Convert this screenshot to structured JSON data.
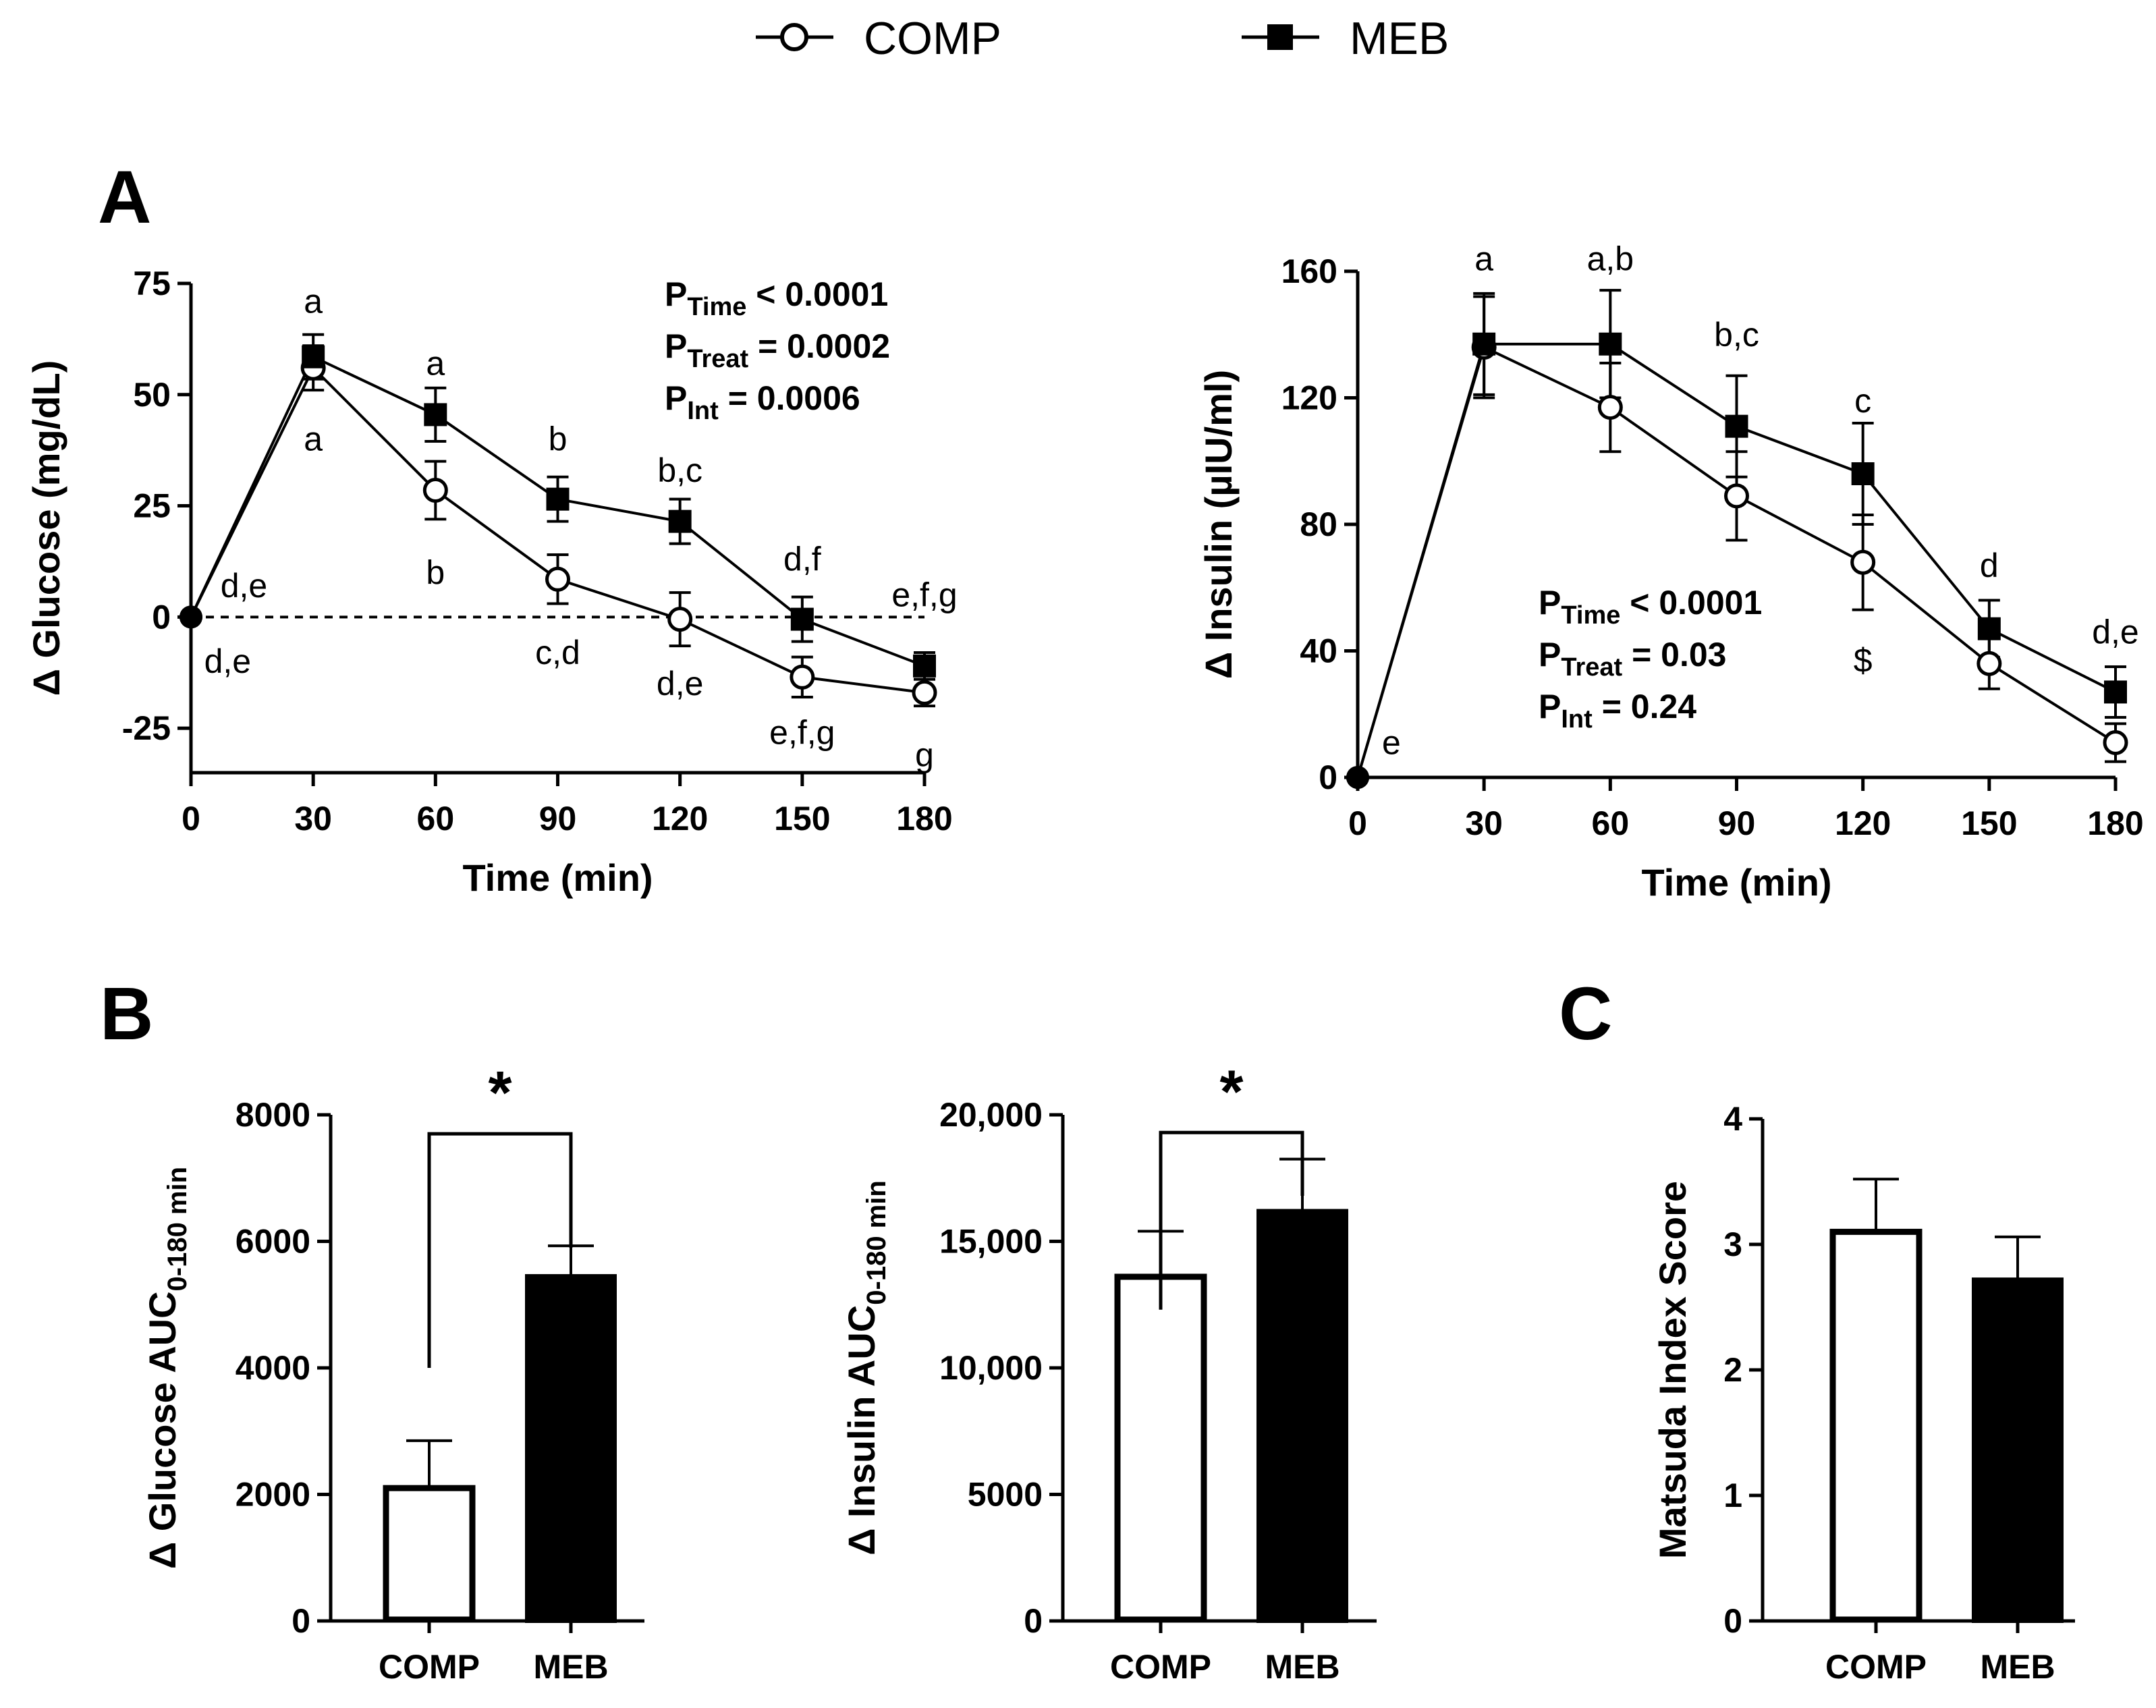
{
  "legend": {
    "items": [
      {
        "name": "COMP",
        "marker": "open-circle"
      },
      {
        "name": "MEB",
        "marker": "filled-square"
      }
    ]
  },
  "colors": {
    "ink": "#000000",
    "background": "#ffffff"
  },
  "chart_data": [
    {
      "id": "glucose_time",
      "panel": "A",
      "type": "line",
      "xlabel": "Time (min)",
      "ylabel": "Δ Glucose (mg/dL)",
      "x": [
        0,
        30,
        60,
        90,
        120,
        150,
        180
      ],
      "xlim": [
        0,
        180
      ],
      "ylim": [
        -35,
        75
      ],
      "yticks": [
        -25,
        0,
        25,
        50,
        75
      ],
      "ytick_labels": [
        "-25",
        "0",
        "25",
        "50",
        "75"
      ],
      "xticks": [
        0,
        30,
        60,
        90,
        120,
        150,
        180
      ],
      "xtick_labels": [
        "0",
        "30",
        "60",
        "90",
        "120",
        "150",
        "180"
      ],
      "zero_line": true,
      "series": [
        {
          "name": "COMP",
          "marker": "open-circle",
          "values": [
            0,
            56,
            28.5,
            8.5,
            -0.5,
            -13.5,
            -17
          ],
          "error": [
            0,
            5,
            6.5,
            5.5,
            6,
            4.5,
            3
          ]
        },
        {
          "name": "MEB",
          "marker": "filled-square",
          "values": [
            0,
            58.5,
            45.5,
            26.5,
            21.5,
            -0.5,
            -11
          ],
          "error": [
            0,
            5,
            6,
            5,
            5,
            5,
            3
          ]
        }
      ],
      "annotations": [
        {
          "text": "a",
          "x": 30,
          "y": 71
        },
        {
          "text": "a",
          "x": 30,
          "y": 40
        },
        {
          "text": "a",
          "x": 60,
          "y": 57
        },
        {
          "text": "b",
          "x": 60,
          "y": 10
        },
        {
          "text": "b",
          "x": 90,
          "y": 40
        },
        {
          "text": "c,d",
          "x": 90,
          "y": -8
        },
        {
          "text": "b,c",
          "x": 120,
          "y": 33
        },
        {
          "text": "d,e",
          "x": 120,
          "y": -15
        },
        {
          "text": "d,f",
          "x": 150,
          "y": 13
        },
        {
          "text": "e,f,g",
          "x": 150,
          "y": -26
        },
        {
          "text": "e,f,g",
          "x": 180,
          "y": 5
        },
        {
          "text": "g",
          "x": 180,
          "y": -31
        },
        {
          "text": "d,e",
          "x": 13,
          "y": 7
        },
        {
          "text": "d,e",
          "x": 9,
          "y": -10
        }
      ],
      "stats": [
        {
          "p": "P",
          "sub": "Time",
          "rest": " < 0.0001"
        },
        {
          "p": "P",
          "sub": "Treat",
          "rest": " = 0.0002"
        },
        {
          "p": "P",
          "sub": "Int",
          "rest": " = 0.0006"
        }
      ]
    },
    {
      "id": "insulin_time",
      "panel": "A",
      "type": "line",
      "xlabel": "Time (min)",
      "ylabel": "Δ Insulin (µIU/ml)",
      "x": [
        0,
        30,
        60,
        90,
        120,
        150,
        180
      ],
      "xlim": [
        0,
        180
      ],
      "ylim": [
        0,
        160
      ],
      "yticks": [
        0,
        40,
        80,
        120,
        160
      ],
      "ytick_labels": [
        "0",
        "40",
        "80",
        "120",
        "160"
      ],
      "xticks": [
        0,
        30,
        60,
        90,
        120,
        150,
        180
      ],
      "xtick_labels": [
        "0",
        "30",
        "60",
        "90",
        "120",
        "150",
        "180"
      ],
      "zero_line": false,
      "series": [
        {
          "name": "COMP",
          "marker": "open-circle",
          "values": [
            0,
            136,
            117,
            89,
            68,
            36,
            11
          ],
          "error": [
            0,
            16,
            14,
            14,
            15,
            8,
            6
          ]
        },
        {
          "name": "MEB",
          "marker": "filled-square",
          "values": [
            0,
            137,
            137,
            111,
            96,
            47,
            27
          ],
          "error": [
            0,
            16,
            17,
            16,
            16,
            9,
            8
          ]
        }
      ],
      "annotations": [
        {
          "text": "a",
          "x": 30,
          "y": 164
        },
        {
          "text": "a,b",
          "x": 60,
          "y": 164
        },
        {
          "text": "b,c",
          "x": 90,
          "y": 140
        },
        {
          "text": "c",
          "x": 120,
          "y": 119
        },
        {
          "text": "$",
          "x": 120,
          "y": 37
        },
        {
          "text": "d",
          "x": 150,
          "y": 67
        },
        {
          "text": "d,e",
          "x": 180,
          "y": 46
        },
        {
          "text": "e",
          "x": 8,
          "y": 11
        }
      ],
      "stats": [
        {
          "p": "P",
          "sub": "Time",
          "rest": " < 0.0001"
        },
        {
          "p": "P",
          "sub": "Treat",
          "rest": " = 0.03"
        },
        {
          "p": "P",
          "sub": "Int",
          "rest": " = 0.24"
        }
      ]
    },
    {
      "id": "glucose_auc",
      "panel": "B",
      "type": "bar",
      "ylabel_main": "Δ Glucose AUC",
      "ylabel_sub": "0-180 min",
      "categories": [
        "COMP",
        "MEB"
      ],
      "values": [
        2100,
        5450
      ],
      "error": [
        750,
        480
      ],
      "ylim": [
        0,
        8000
      ],
      "yticks": [
        0,
        2000,
        4000,
        6000,
        8000
      ],
      "ytick_labels": [
        "0",
        "2000",
        "4000",
        "6000",
        "8000"
      ],
      "significance": "*"
    },
    {
      "id": "insulin_auc",
      "panel": "B",
      "type": "bar",
      "ylabel_main": "Δ Insulin AUC",
      "ylabel_sub": "0-180 min",
      "categories": [
        "COMP",
        "MEB"
      ],
      "values": [
        13600,
        16200
      ],
      "error": [
        1800,
        2050
      ],
      "ylim": [
        0,
        20000
      ],
      "yticks": [
        0,
        5000,
        10000,
        15000,
        20000
      ],
      "ytick_labels": [
        "0",
        "5000",
        "10,000",
        "15,000",
        "20,000"
      ],
      "significance": "*"
    },
    {
      "id": "matsuda",
      "panel": "C",
      "type": "bar",
      "ylabel_main": "Matsuda Index Score",
      "ylabel_sub": "",
      "categories": [
        "COMP",
        "MEB"
      ],
      "values": [
        3.1,
        2.72
      ],
      "error": [
        0.42,
        0.34
      ],
      "ylim": [
        0,
        4
      ],
      "yticks": [
        0,
        1,
        2,
        3,
        4
      ],
      "ytick_labels": [
        "0",
        "1",
        "2",
        "3",
        "4"
      ],
      "significance": ""
    }
  ]
}
